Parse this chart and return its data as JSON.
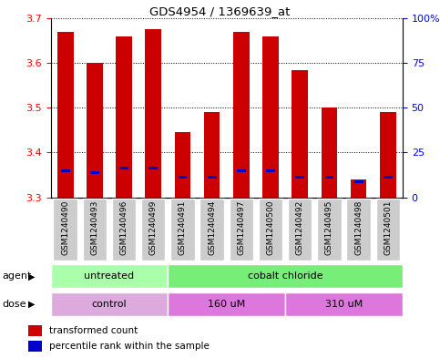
{
  "title": "GDS4954 / 1369639_at",
  "samples": [
    "GSM1240490",
    "GSM1240493",
    "GSM1240496",
    "GSM1240499",
    "GSM1240491",
    "GSM1240494",
    "GSM1240497",
    "GSM1240500",
    "GSM1240492",
    "GSM1240495",
    "GSM1240498",
    "GSM1240501"
  ],
  "bar_tops": [
    3.67,
    3.6,
    3.66,
    3.675,
    3.445,
    3.49,
    3.67,
    3.66,
    3.585,
    3.5,
    3.34,
    3.49
  ],
  "bar_bottoms": [
    3.3,
    3.3,
    3.3,
    3.3,
    3.3,
    3.3,
    3.3,
    3.3,
    3.3,
    3.3,
    3.3,
    3.3
  ],
  "blue_marks": [
    3.36,
    3.355,
    3.365,
    3.365,
    3.345,
    3.345,
    3.36,
    3.36,
    3.345,
    3.345,
    3.335,
    3.345
  ],
  "bar_color": "#cc0000",
  "blue_color": "#0000cc",
  "ylim_left": [
    3.3,
    3.7
  ],
  "ylim_right": [
    0,
    100
  ],
  "yticks_left": [
    3.3,
    3.4,
    3.5,
    3.6,
    3.7
  ],
  "yticks_right": [
    0,
    25,
    50,
    75,
    100
  ],
  "ytick_labels_right": [
    "0",
    "25",
    "50",
    "75",
    "100%"
  ],
  "agent_groups": [
    {
      "label": "untreated",
      "start": 0,
      "end": 4,
      "color": "#aaffaa"
    },
    {
      "label": "cobalt chloride",
      "start": 4,
      "end": 12,
      "color": "#77ee77"
    }
  ],
  "dose_groups": [
    {
      "label": "control",
      "start": 0,
      "end": 4,
      "color": "#ddaadd"
    },
    {
      "label": "160 uM",
      "start": 4,
      "end": 8,
      "color": "#dd77dd"
    },
    {
      "label": "310 uM",
      "start": 8,
      "end": 12,
      "color": "#dd77dd"
    }
  ],
  "legend_items": [
    {
      "label": "transformed count",
      "color": "#cc0000"
    },
    {
      "label": "percentile rank within the sample",
      "color": "#0000cc"
    }
  ],
  "bar_width": 0.55,
  "grid_color": "black",
  "sample_box_color": "#cccccc",
  "plot_bg": "white",
  "fig_bg": "white"
}
